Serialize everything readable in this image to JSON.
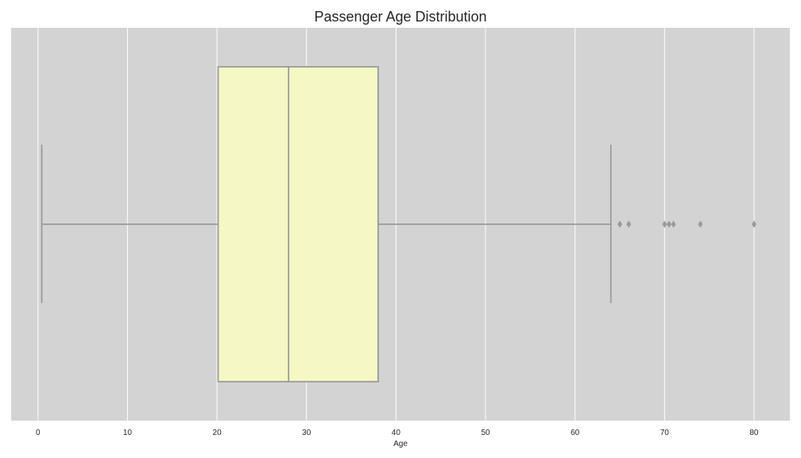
{
  "chart_data": {
    "type": "box",
    "title": "Passenger Age Distribution",
    "xlabel": "Age",
    "ylabel": "",
    "xlim": [
      -3,
      84
    ],
    "xticks": [
      0,
      10,
      20,
      30,
      40,
      50,
      60,
      70,
      80
    ],
    "grid": true,
    "orientation": "horizontal",
    "box": {
      "whisker_low": 0.42,
      "q1": 20.125,
      "median": 28.0,
      "q3": 38.0,
      "whisker_high": 64.0,
      "outliers": [
        65.0,
        66.0,
        70.0,
        70.5,
        71.0,
        74.0,
        80.0
      ]
    },
    "colors": {
      "background": "#d3d3d3",
      "grid": "#ffffff",
      "box_fill": "#f5f7c5",
      "lines": "#9a9a9a",
      "outliers": "#9a9a9a"
    }
  }
}
